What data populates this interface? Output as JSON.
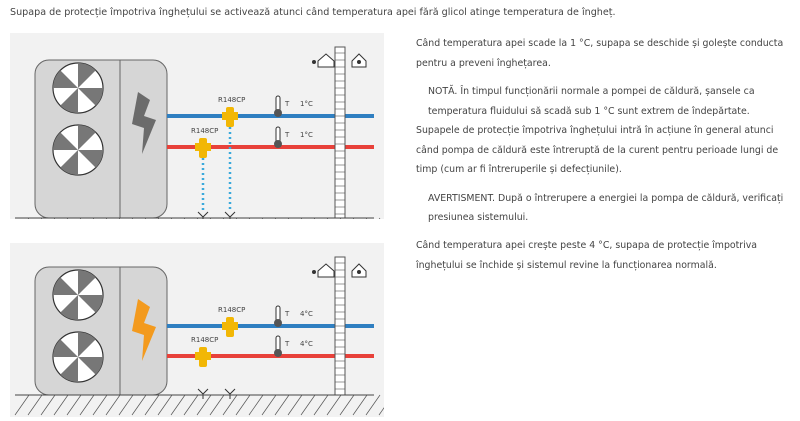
{
  "intro": "Supapa de protecție împotriva înghețului se activează atunci când temperatura apei fără glicol atinge temperatura de îngheț.",
  "diagrams": [
    {
      "valve_label_top": "R148CP",
      "valve_label_bottom": "R148CP",
      "thermo_label": "T",
      "temp_top": "1°C",
      "temp_bottom": "1°C",
      "bolt_color": "#6b6b6b",
      "draining": true
    },
    {
      "valve_label_top": "R148CP",
      "valve_label_bottom": "R148CP",
      "thermo_label": "T",
      "temp_top": "4°C",
      "temp_bottom": "4°C",
      "bolt_color": "#f39a1e",
      "draining": false
    }
  ],
  "colors": {
    "supply_pipe": "#2f7fc1",
    "return_pipe": "#e8413a",
    "valve": "#f2b705",
    "drip": "#3aa9dc"
  },
  "text1": {
    "p1": "Când temperatura apei scade la 1 °C, supapa se deschide și golește conducta pentru a preveni înghețarea.",
    "p2": "NOTĂ. În timpul funcționării normale a pompei de căldură, șansele ca temperatura fluidului să scadă sub 1 °C sunt extrem de îndepărtate.",
    "p3": "Supapele de protecție împotriva înghețului intră în acțiune în general atunci când pompa de căldură este întreruptă de la curent pentru perioade lungi de timp (cum ar fi întreruperile și defecțiunile).",
    "p4": "AVERTISMENT. După o întrerupere a energiei la pompa de căldură, verificați presiunea sistemului."
  },
  "text2": {
    "p1": "Când temperatura apei crește peste 4 °C, supapa de protecție împotriva înghețului se închide și sistemul revine la funcționarea normală."
  }
}
